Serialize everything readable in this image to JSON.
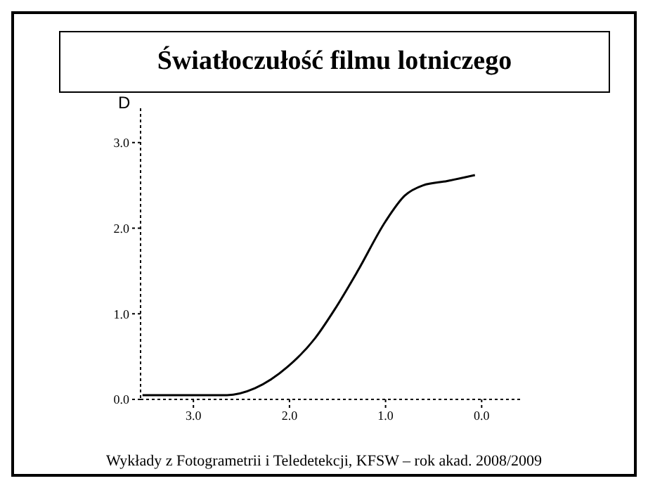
{
  "chart_data": {
    "type": "line",
    "title": "Światłoczułość filmu lotniczego",
    "ylabel": "D",
    "annotations": [
      "Wykłady z Fotogrametrii i Teledetekcji, KFSW – rok akad. 2008/2009"
    ],
    "x": [
      3.53,
      2.65,
      2.36,
      2.02,
      1.73,
      1.53,
      1.29,
      1.0,
      0.8,
      0.61,
      0.36,
      0.07
    ],
    "series": [
      {
        "color": "#000000",
        "values": [
          0.05,
          0.05,
          0.13,
          0.38,
          0.72,
          1.05,
          1.5,
          2.08,
          2.38,
          2.5,
          2.55,
          2.62
        ]
      }
    ],
    "xlim": [
      3.55,
      -0.4
    ],
    "xticks": [
      {
        "value": 3,
        "label": "3.0"
      },
      {
        "value": 2,
        "label": "2.0"
      },
      {
        "value": 1,
        "label": "1.0"
      },
      {
        "value": 0,
        "label": "0.0"
      }
    ],
    "ylim": [
      0,
      3.4
    ],
    "yticks": [
      {
        "value": 0,
        "label": "0.0"
      },
      {
        "value": 1,
        "label": "1.0"
      },
      {
        "value": 2,
        "label": "2.0"
      },
      {
        "value": 3,
        "label": "3.0"
      }
    ],
    "grid": false,
    "legend": false,
    "marker": "none",
    "line_style": "solid"
  }
}
